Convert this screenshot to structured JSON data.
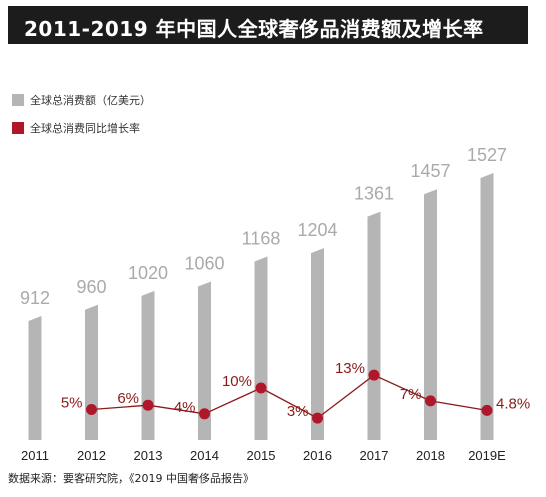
{
  "title": "2011-2019 年中国人全球奢侈品消费额及增长率",
  "source": "数据来源：要客研究院，《2019 中国奢侈品报告》",
  "colors": {
    "bar": "#b5b5b5",
    "line": "#8b1a1a",
    "point": "#b0172a",
    "title_bg": "#1c1c1c"
  },
  "chart_data": {
    "type": "bar",
    "categories": [
      "2011",
      "2012",
      "2013",
      "2014",
      "2015",
      "2016",
      "2017",
      "2018",
      "2019E"
    ],
    "series": [
      {
        "name": "全球总消费额（亿美元）",
        "type": "bar",
        "values": [
          912,
          960,
          1020,
          1060,
          1168,
          1204,
          1361,
          1457,
          1527
        ],
        "labels": [
          "912",
          "960",
          "1020",
          "1060",
          "1168",
          "1204",
          "1361",
          "1457",
          "1527"
        ]
      },
      {
        "name": "全球总消费同比增长率",
        "type": "line",
        "values": [
          null,
          5,
          6,
          4,
          10,
          3,
          13,
          7,
          4.8
        ],
        "labels": [
          "",
          "5%",
          "6%",
          "4%",
          "10%",
          "3%",
          "13%",
          "7%",
          "4.8%"
        ]
      }
    ],
    "legend_position": "top-left",
    "grid": false
  }
}
